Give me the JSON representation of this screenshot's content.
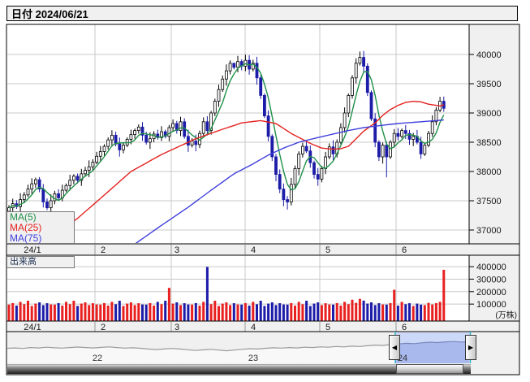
{
  "title_bar": {
    "title": "日付 2024/06/21"
  },
  "legend": {
    "items": [
      {
        "label": "MA(5)",
        "color": "#1f9048"
      },
      {
        "label": "MA(25)",
        "color": "#e42320"
      },
      {
        "label": "MA(75)",
        "color": "#4040dd"
      }
    ]
  },
  "price_axis": {
    "ticks": [
      40000,
      39500,
      39000,
      38500,
      38000,
      37500,
      37000
    ]
  },
  "x_axis": {
    "month_labels": [
      "24/1",
      "2",
      "3",
      "4",
      "5",
      "6"
    ]
  },
  "volume_panel": {
    "label": "出来高",
    "unit_label": "(万株)",
    "y_ticks": [
      400000,
      300000,
      200000,
      100000
    ]
  },
  "navigator": {
    "year_labels": [
      "22",
      "23",
      "24"
    ],
    "left_arrow": "◀",
    "right_arrow": "▶",
    "values": [
      0.34,
      0.36,
      0.33,
      0.38,
      0.36,
      0.4,
      0.37,
      0.35,
      0.38,
      0.41,
      0.38,
      0.36,
      0.39,
      0.42,
      0.38,
      0.35,
      0.37,
      0.34,
      0.3,
      0.27,
      0.3,
      0.33,
      0.3,
      0.26,
      0.22,
      0.25,
      0.28,
      0.24,
      0.2,
      0.24,
      0.28,
      0.32,
      0.3,
      0.34,
      0.37,
      0.35,
      0.38,
      0.36,
      0.4,
      0.38,
      0.42,
      0.4,
      0.44,
      0.42,
      0.46,
      0.44,
      0.48,
      0.52,
      0.5,
      0.55,
      0.58,
      0.62,
      0.6,
      0.65,
      0.68,
      0.66,
      0.7,
      0.72,
      0.69,
      0.71
    ]
  },
  "colors": {
    "up_candle": "#ffffff",
    "up_border": "#000000",
    "down_candle": "#1c1ca8",
    "volume_up": "#e82020",
    "volume_down": "#1c1ca8",
    "grid": "#c8c8c8",
    "panel_bg": "#f0f0f0",
    "border": "#000000",
    "teal_guide": "#2fb3c4",
    "selection_bg": "#ccd8f8",
    "selection_area": "#a9b9ee",
    "selection_line": "#7788bb",
    "nav_line": "#9a9a9a",
    "nav_fill": "#f8f8f8"
  },
  "chart_data": {
    "type": "candlestick",
    "title": "日付 2024/06/21",
    "period": "2024/01 - 2024/06/21",
    "ylim": [
      36760,
      40540
    ],
    "volume_ylim": [
      0,
      450000
    ],
    "months": [
      "24/1",
      "2",
      "3",
      "4",
      "5",
      "6"
    ],
    "days_per_month": [
      22,
      21,
      19,
      20,
      20,
      13
    ],
    "legend_series": [
      "MA(5)",
      "MA(25)",
      "MA(75)"
    ],
    "candles": [
      [
        37320,
        37425,
        37265,
        37380,
        96000
      ],
      [
        37380,
        37535,
        37285,
        37450,
        108000
      ],
      [
        37450,
        37510,
        37360,
        37400,
        88000
      ],
      [
        37400,
        37630,
        37285,
        37520,
        118000
      ],
      [
        37520,
        37650,
        37460,
        37600,
        99000
      ],
      [
        37600,
        37775,
        37565,
        37700,
        127000
      ],
      [
        37700,
        37885,
        37615,
        37790,
        85000
      ],
      [
        37790,
        37895,
        37720,
        37860,
        104000
      ],
      [
        37860,
        37905,
        37645,
        37700,
        114000
      ],
      [
        37700,
        37785,
        37385,
        37480,
        92000
      ],
      [
        37480,
        37540,
        37340,
        37380,
        107000
      ],
      [
        37380,
        37610,
        37265,
        37500,
        97000
      ],
      [
        37500,
        37670,
        37440,
        37620,
        96000
      ],
      [
        37620,
        37695,
        37515,
        37550,
        108000
      ],
      [
        37550,
        37775,
        37490,
        37680,
        88000
      ],
      [
        37680,
        37795,
        37645,
        37760,
        118000
      ],
      [
        37760,
        37945,
        37675,
        37850,
        99000
      ],
      [
        37850,
        37955,
        37780,
        37920,
        127000
      ],
      [
        37920,
        37965,
        37795,
        37850,
        85000
      ],
      [
        37850,
        38045,
        37755,
        37960,
        104000
      ],
      [
        37960,
        38080,
        37920,
        38020,
        114000
      ],
      [
        38020,
        38190,
        37905,
        38080,
        92000
      ],
      [
        38080,
        38210,
        38020,
        38160,
        107000
      ],
      [
        38160,
        38335,
        38125,
        38260,
        97000
      ],
      [
        38260,
        38435,
        38175,
        38340,
        96000
      ],
      [
        38340,
        38465,
        38270,
        38430,
        108000
      ],
      [
        38430,
        38585,
        38375,
        38540,
        88000
      ],
      [
        38540,
        38705,
        38445,
        38620,
        118000
      ],
      [
        38620,
        38680,
        38430,
        38470,
        99000
      ],
      [
        38470,
        38580,
        38255,
        38370,
        127000
      ],
      [
        38370,
        38500,
        38310,
        38450,
        85000
      ],
      [
        38450,
        38585,
        38415,
        38550,
        104000
      ],
      [
        38550,
        38715,
        38465,
        38630,
        114000
      ],
      [
        38630,
        38735,
        38560,
        38700,
        92000
      ],
      [
        38700,
        38805,
        38645,
        38760,
        107000
      ],
      [
        38760,
        38845,
        38525,
        38620,
        97000
      ],
      [
        38620,
        38680,
        38460,
        38500,
        96000
      ],
      [
        38500,
        38670,
        38385,
        38560,
        108000
      ],
      [
        38560,
        38690,
        38500,
        38640,
        88000
      ],
      [
        38640,
        38715,
        38545,
        38580,
        118000
      ],
      [
        38580,
        38775,
        38520,
        38680,
        99000
      ],
      [
        38680,
        38715,
        38565,
        38600,
        127000
      ],
      [
        38600,
        38795,
        38515,
        38750,
        230000
      ],
      [
        38750,
        38890,
        38680,
        38820,
        104000
      ],
      [
        38820,
        38865,
        38645,
        38700,
        114000
      ],
      [
        38700,
        38935,
        38605,
        38850,
        92000
      ],
      [
        38850,
        38910,
        38560,
        38600,
        107000
      ],
      [
        38600,
        38715,
        38335,
        38450,
        97000
      ],
      [
        38450,
        38570,
        38410,
        38520,
        96000
      ],
      [
        38520,
        38630,
        38345,
        38460,
        108000
      ],
      [
        38460,
        38700,
        38400,
        38650,
        88000
      ],
      [
        38650,
        38925,
        38615,
        38850,
        118000
      ],
      [
        38850,
        38945,
        38615,
        38700,
        398000
      ],
      [
        38700,
        39035,
        38630,
        39000,
        99000
      ],
      [
        39000,
        39245,
        38945,
        39200,
        127000
      ],
      [
        39200,
        39485,
        39105,
        39400,
        85000
      ],
      [
        39400,
        39640,
        39360,
        39580,
        104000
      ],
      [
        39580,
        39830,
        39465,
        39720,
        114000
      ],
      [
        39720,
        39900,
        39660,
        39850,
        92000
      ],
      [
        39850,
        39855,
        39745,
        39780,
        107000
      ],
      [
        39780,
        39975,
        39695,
        39880,
        97000
      ],
      [
        39880,
        39915,
        39730,
        39800,
        96000
      ],
      [
        39800,
        39995,
        39715,
        39900,
        108000
      ],
      [
        39900,
        39985,
        39655,
        39750,
        88000
      ],
      [
        39750,
        39910,
        39710,
        39850,
        118000
      ],
      [
        39850,
        39960,
        39485,
        39600,
        99000
      ],
      [
        39600,
        39650,
        39240,
        39300,
        127000
      ],
      [
        39300,
        39335,
        38915,
        38950,
        85000
      ],
      [
        38950,
        39045,
        38515,
        38600,
        104000
      ],
      [
        38600,
        38635,
        38180,
        38250,
        114000
      ],
      [
        38250,
        38300,
        37835,
        37950,
        92000
      ],
      [
        37950,
        38035,
        37630,
        37700,
        107000
      ],
      [
        37700,
        37795,
        37405,
        37520,
        97000
      ],
      [
        37520,
        37580,
        37350,
        37480,
        96000
      ],
      [
        37480,
        37890,
        37420,
        37780,
        108000
      ],
      [
        37780,
        38100,
        37720,
        38050,
        88000
      ],
      [
        38050,
        38345,
        37935,
        38300,
        118000
      ],
      [
        38300,
        38490,
        38240,
        38430,
        99000
      ],
      [
        38430,
        38505,
        38315,
        38350,
        127000
      ],
      [
        38350,
        38445,
        38065,
        38150,
        85000
      ],
      [
        38150,
        38185,
        37880,
        37950,
        104000
      ],
      [
        37950,
        38060,
        37755,
        37870,
        114000
      ],
      [
        37870,
        38095,
        37815,
        38050,
        92000
      ],
      [
        38050,
        38335,
        37955,
        38250,
        107000
      ],
      [
        38250,
        38480,
        38210,
        38420,
        97000
      ],
      [
        38420,
        38535,
        38185,
        38300,
        96000
      ],
      [
        38300,
        38550,
        38240,
        38500,
        108000
      ],
      [
        38500,
        38825,
        38465,
        38750,
        88000
      ],
      [
        38750,
        39095,
        38665,
        39000,
        118000
      ],
      [
        39000,
        39335,
        38930,
        39300,
        99000
      ],
      [
        39300,
        39645,
        39245,
        39600,
        135000
      ],
      [
        39600,
        39935,
        39505,
        39850,
        110000
      ],
      [
        39850,
        40050,
        39810,
        39950,
        142000
      ],
      [
        39950,
        40060,
        39685,
        39800,
        128000
      ],
      [
        39800,
        39850,
        39290,
        39350,
        104000
      ],
      [
        39350,
        39385,
        38865,
        38900,
        114000
      ],
      [
        38900,
        38995,
        38415,
        38500,
        92000
      ],
      [
        38500,
        38535,
        38180,
        38250,
        107000
      ],
      [
        38250,
        38495,
        38135,
        38450,
        97000
      ],
      [
        38450,
        38510,
        37900,
        38250,
        96000
      ],
      [
        38250,
        38535,
        38215,
        38500,
        108000
      ],
      [
        38500,
        38725,
        38415,
        38650,
        215000
      ],
      [
        38650,
        38745,
        38530,
        38600,
        88000
      ],
      [
        38600,
        38735,
        38565,
        38700,
        118000
      ],
      [
        38700,
        38795,
        38555,
        38650,
        99000
      ],
      [
        38650,
        38710,
        38455,
        38550,
        107000
      ],
      [
        38550,
        38660,
        38435,
        38600,
        85000
      ],
      [
        38600,
        38710,
        38465,
        38500,
        104000
      ],
      [
        38500,
        38595,
        38215,
        38300,
        96000
      ],
      [
        38300,
        38485,
        38265,
        38450,
        92000
      ],
      [
        38450,
        38695,
        38415,
        38650,
        110000
      ],
      [
        38650,
        38960,
        38590,
        38850,
        97000
      ],
      [
        38850,
        39100,
        38790,
        39050,
        108000
      ],
      [
        39050,
        39275,
        39015,
        39200,
        118000
      ],
      [
        39200,
        39280,
        39020,
        39080,
        375000
      ]
    ],
    "volume_color_overrides": {
      "114": "r"
    },
    "ma25_anchors": [
      [
        10,
        36800
      ],
      [
        18,
        37200
      ],
      [
        24,
        37540
      ],
      [
        32,
        38000
      ],
      [
        40,
        38290
      ],
      [
        49,
        38560
      ],
      [
        55,
        38700
      ],
      [
        61,
        38830
      ],
      [
        66,
        38870
      ],
      [
        70,
        38820
      ],
      [
        74,
        38650
      ],
      [
        79,
        38480
      ],
      [
        82,
        38400
      ],
      [
        85,
        38380
      ],
      [
        87,
        38390
      ],
      [
        89,
        38430
      ],
      [
        91,
        38560
      ],
      [
        93,
        38690
      ],
      [
        96,
        38830
      ],
      [
        98,
        38960
      ],
      [
        100,
        39060
      ],
      [
        102,
        39130
      ],
      [
        104,
        39180
      ],
      [
        106,
        39200
      ],
      [
        108,
        39190
      ],
      [
        110,
        39150
      ],
      [
        113,
        39120
      ],
      [
        114,
        39140
      ]
    ],
    "ma75_anchors": [
      [
        33,
        36760
      ],
      [
        40,
        37080
      ],
      [
        47,
        37390
      ],
      [
        53,
        37680
      ],
      [
        59,
        37960
      ],
      [
        64,
        38130
      ],
      [
        68,
        38280
      ],
      [
        72,
        38400
      ],
      [
        76,
        38500
      ],
      [
        81,
        38580
      ],
      [
        85,
        38640
      ],
      [
        89,
        38700
      ],
      [
        93,
        38750
      ],
      [
        98,
        38790
      ],
      [
        102,
        38820
      ],
      [
        106,
        38840
      ],
      [
        110,
        38860
      ],
      [
        114,
        38880
      ]
    ]
  }
}
